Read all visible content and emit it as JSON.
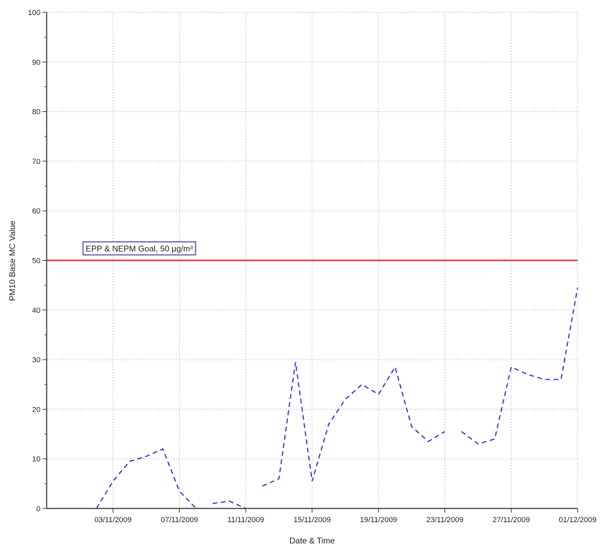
{
  "chart_data": {
    "type": "line",
    "xlabel": "Date & Time",
    "ylabel": "PM10 Base MC Value",
    "ylim": [
      0,
      100
    ],
    "y_ticks": [
      0,
      10,
      20,
      30,
      40,
      50,
      60,
      70,
      80,
      90,
      100
    ],
    "y_tick_labels": [
      "0",
      "10",
      "20",
      "30",
      "40",
      "50",
      "60",
      "70",
      "80",
      "90",
      "100"
    ],
    "xlim_days": [
      -2.0,
      30.0
    ],
    "x_ticks": [
      {
        "label": "03/11/2009",
        "day": 2
      },
      {
        "label": "07/11/2009",
        "day": 6
      },
      {
        "label": "11/11/2009",
        "day": 10
      },
      {
        "label": "15/11/2009",
        "day": 14
      },
      {
        "label": "19/11/2009",
        "day": 18
      },
      {
        "label": "23/11/2009",
        "day": 22
      },
      {
        "label": "27/11/2009",
        "day": 26
      },
      {
        "label": "01/12/2009",
        "day": 30
      }
    ],
    "grid": true,
    "reference_line": {
      "value": 50,
      "label": "EPP & NEPM Goal, 50 μg/m³",
      "color": "#d4203a"
    },
    "series": [
      {
        "color": "#2a2ad0",
        "dash": "dashed",
        "segments": [
          [
            {
              "date": "01/11/2009",
              "y": 0
            },
            {
              "date": "02/11/2009",
              "y": 5.5
            },
            {
              "date": "03/11/2009",
              "y": 9.5
            },
            {
              "date": "04/11/2009",
              "y": 10.5
            },
            {
              "date": "05/11/2009",
              "y": 12
            },
            {
              "date": "06/11/2009",
              "y": 3.5
            },
            {
              "date": "07/11/2009",
              "y": 0
            }
          ],
          [
            {
              "date": "08/11/2009",
              "y": 1
            },
            {
              "date": "09/11/2009",
              "y": 1.5
            },
            {
              "date": "10/11/2009",
              "y": 0
            }
          ],
          [
            {
              "date": "11/11/2009",
              "y": 4.5
            },
            {
              "date": "12/11/2009",
              "y": 6
            },
            {
              "date": "13/11/2009",
              "y": 29.5
            },
            {
              "date": "14/11/2009",
              "y": 5.5
            },
            {
              "date": "15/11/2009",
              "y": 17
            },
            {
              "date": "16/11/2009",
              "y": 22
            },
            {
              "date": "17/11/2009",
              "y": 25
            },
            {
              "date": "18/11/2009",
              "y": 23
            },
            {
              "date": "19/11/2009",
              "y": 28.5
            },
            {
              "date": "20/11/2009",
              "y": 16.5
            },
            {
              "date": "21/11/2009",
              "y": 13.5
            },
            {
              "date": "22/11/2009",
              "y": 15.5
            }
          ],
          [
            {
              "date": "23/11/2009",
              "y": 15.5
            },
            {
              "date": "24/11/2009",
              "y": 13
            },
            {
              "date": "25/11/2009",
              "y": 14
            },
            {
              "date": "26/11/2009",
              "y": 28.5
            },
            {
              "date": "27/11/2009",
              "y": 27
            },
            {
              "date": "28/11/2009",
              "y": 26
            },
            {
              "date": "29/11/2009",
              "y": 26
            },
            {
              "date": "30/11/2009",
              "y": 44.5
            }
          ]
        ]
      }
    ]
  }
}
